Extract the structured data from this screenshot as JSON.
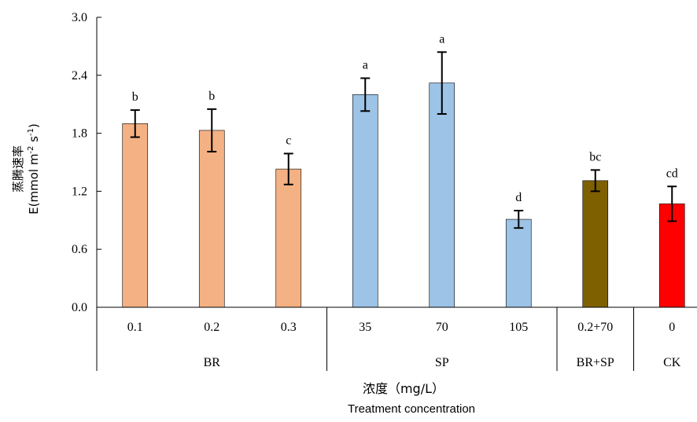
{
  "chart_data": {
    "type": "bar",
    "ylabel_cn": "蒸腾速率",
    "ylabel_en_base": "E(mmol m",
    "ylabel_en_sup1": "-2",
    "ylabel_en_mid": " s",
    "ylabel_en_sup2": "-1",
    "ylabel_en_end": ")",
    "xlabel_cn": "浓度（mg/L）",
    "xlabel_en": "Treatment concentration",
    "ylim": [
      0,
      3.0
    ],
    "yticks": [
      "0.0",
      "0.6",
      "1.2",
      "1.8",
      "2.4",
      "3.0"
    ],
    "categories": [
      "0.1",
      "0.2",
      "0.3",
      "35",
      "70",
      "105",
      "0.2+70",
      "0"
    ],
    "values": [
      1.9,
      1.83,
      1.43,
      2.2,
      2.32,
      0.91,
      1.31,
      1.07
    ],
    "errors": [
      0.14,
      0.22,
      0.16,
      0.17,
      0.32,
      0.09,
      0.11,
      0.18
    ],
    "significance": [
      "b",
      "b",
      "c",
      "a",
      "a",
      "d",
      "bc",
      "cd"
    ],
    "groups": [
      {
        "name": "BR",
        "start": 0,
        "end": 2
      },
      {
        "name": "SP",
        "start": 3,
        "end": 5
      },
      {
        "name": "BR+SP",
        "start": 6,
        "end": 6
      },
      {
        "name": "CK",
        "start": 7,
        "end": 7
      }
    ],
    "colors": [
      "#F4B183",
      "#F4B183",
      "#F4B183",
      "#9DC3E6",
      "#9DC3E6",
      "#9DC3E6",
      "#7F6000",
      "#FF0000"
    ],
    "grid": false,
    "legend": "none"
  }
}
